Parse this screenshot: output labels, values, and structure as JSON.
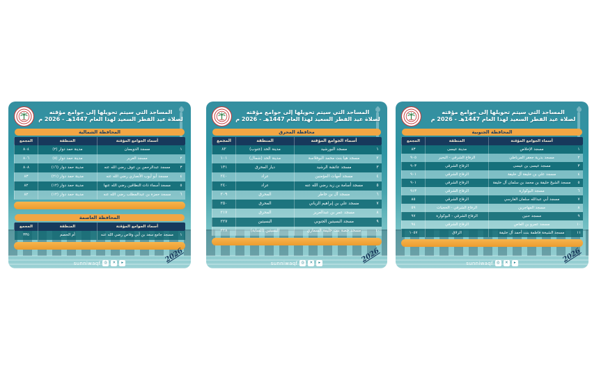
{
  "header": {
    "title_line1": "المساجد التي سيتم تحويلها إلى جوامع مؤقته",
    "title_line2": "لصلاة عيد الفطر السعيد لهذا العام 1447هـ - 2026 م",
    "logo": "sunni-waqf-emblem"
  },
  "columns": {
    "no": "",
    "names": "أسماء الجوامع المؤقتة",
    "area": "المنطقة",
    "block": "المجمع"
  },
  "footer": {
    "brand": "sunniwaqf",
    "year_badge": "2026"
  },
  "social_icons": [
    "instagram-icon",
    "x-icon",
    "youtube-icon"
  ],
  "colors": {
    "navy": "#17395c",
    "orange": "#f2a644",
    "teal-top": "#358fa0",
    "teal-bottom": "#9fd3d6",
    "logo-red": "#c23a3a",
    "palm-green": "#2e7d46"
  },
  "cards": [
    {
      "id": "northern-and-capital",
      "sections": [
        {
          "banner": "المحافظة الشمالية",
          "rows": [
            {
              "no": "١",
              "name": "مسجد الدويسان",
              "area": "مدينة حمد دوار (٢)",
              "block": "٨٠٤"
            },
            {
              "no": "٢",
              "name": "مسجد الغرير",
              "area": "مدينة حمد دوار (٥)",
              "block": "٨٠٦"
            },
            {
              "no": "٣",
              "name": "مسجد عبدالرحمن بن عوف رضي الله عنه",
              "area": "مدينة حمد دوار (١٦)",
              "block": "٨٠٨"
            },
            {
              "no": "٤",
              "name": "مسجد أبو أيوب الأنصاري رضي الله عنه",
              "area": "مدينة حمد دوار (٢١)",
              "block": "٨٣"
            },
            {
              "no": "٥",
              "name": "مسجد أسماء ذات النطاقين رضي الله عنها",
              "area": "مدينة حمد دوار (١٢)",
              "block": "٨٢"
            },
            {
              "no": "٦",
              "name": "مسجد حمزة بن عبدالمطلب رضي الله عنه",
              "area": "مدينة حمد دوار (١٢)",
              "block": "٨٢"
            }
          ]
        },
        {
          "banner": "المحافظة العاصمة",
          "rows": [
            {
              "no": "١",
              "name": "مسجد جامع سعد بن أبي وقاص رضي الله عنه",
              "area": "أم الحصم",
              "block": "٣٣٥"
            }
          ]
        }
      ]
    },
    {
      "id": "muharraq",
      "sections": [
        {
          "banner": "محافظة المحرق",
          "rows": [
            {
              "no": "١",
              "name": "مسجد البورشيد",
              "area": "مدينة الحد (جنوب)",
              "block": "٨٢"
            },
            {
              "no": "٢",
              "name": "مسجد هيا بنت محمد البوفلاسة",
              "area": "مدينة الحد (شمال)",
              "block": "١٠١"
            },
            {
              "no": "٣",
              "name": "مسجد عائشة الرشيد",
              "area": "ديار المحرق",
              "block": "١٣١"
            },
            {
              "no": "٤",
              "name": "مسجد أمهات المؤمنين",
              "area": "عراد",
              "block": "٢٤٠"
            },
            {
              "no": "٥",
              "name": "مسجد أسامة بن زيد رضي الله عنه",
              "area": "عراد",
              "block": "٢٤٠"
            },
            {
              "no": "٦",
              "name": "مسجد آل بن خاطر",
              "area": "المحرق",
              "block": "٢٠٩"
            },
            {
              "no": "٧",
              "name": "مسجد علي بن إبراهيم الزياني",
              "area": "المحرق",
              "block": "٢٥٠"
            },
            {
              "no": "٨",
              "name": "مسجد عمر بن عبدالعزيز",
              "area": "المحرق",
              "block": "٢١٧"
            },
            {
              "no": "٩",
              "name": "مسجد البسيتين الجنوبي",
              "area": "البسيتين",
              "block": "٢٢٧"
            },
            {
              "no": "١٠",
              "name": "مسجد حصة بنت خليفة السماري",
              "area": "البسيتين (الساية)",
              "block": "٢٢٨"
            }
          ]
        }
      ]
    },
    {
      "id": "southern",
      "sections": [
        {
          "banner": "المحافظة الجنوبية",
          "rows": [
            {
              "no": "١",
              "name": "مسجد الإخلاص",
              "area": "مدينة عيسى",
              "block": "٨٣"
            },
            {
              "no": "٢",
              "name": "مسجد بدرية جعفر المرباطي",
              "area": "الرفاع الشرقي - البحير",
              "block": "٩٠٥"
            },
            {
              "no": "٣",
              "name": "مسجد عيسى بن عيسى",
              "area": "الرفاع الشرقي",
              "block": "٩٠٣"
            },
            {
              "no": "٤",
              "name": "مسجد علي بن خليفة آل خليفة",
              "area": "الرفاع الشرقي",
              "block": "٩٠١"
            },
            {
              "no": "٥",
              "name": "مسجد الشيخ خليفة بن محمد بن سلمان آل خليفة",
              "area": "الرفاع الشرقي",
              "block": "٩٠١"
            },
            {
              "no": "٦",
              "name": "مسجد البوكوارة",
              "area": "الرفاع الشرقي",
              "block": "٩١٣"
            },
            {
              "no": "٧",
              "name": "مسجد أبي عبدالله سلمان الفارسي",
              "area": "الرفاع الشرقي",
              "block": "٨٥"
            },
            {
              "no": "٨",
              "name": "مسجد المهاجرين",
              "area": "الرفاع الشرقي - الحجيات",
              "block": "٥٩"
            },
            {
              "no": "٩",
              "name": "مسجد حنين",
              "area": "الرفاع الشرقي - البوكوارة",
              "block": "٩٧"
            },
            {
              "no": "١٠",
              "name": "مسجد عمرو بن العاص",
              "area": "الرفاع الشرقي",
              "block": "٩٤"
            },
            {
              "no": "١١",
              "name": "مسجد الشيخة فاطمة بنت أحمد آل خليفة",
              "area": "الزلاق",
              "block": "١٠٥٧"
            }
          ]
        }
      ]
    }
  ]
}
